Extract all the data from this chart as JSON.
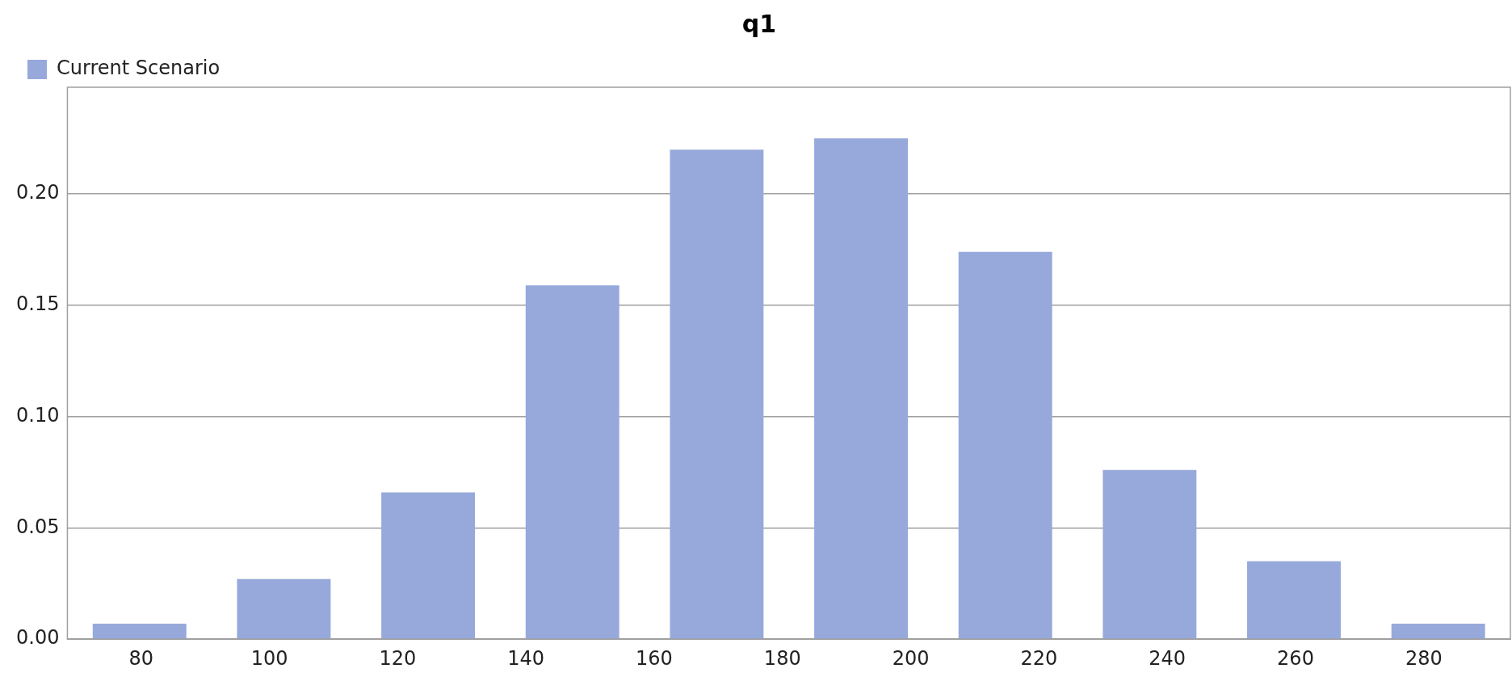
{
  "chart_data": {
    "type": "histogram",
    "title": "q1",
    "bins": [
      68.5,
      91,
      113.5,
      136,
      158.5,
      181,
      203.5,
      226,
      248.5,
      271,
      293.5
    ],
    "series": [
      {
        "name": "Current Scenario",
        "color": "#97a9db",
        "values": [
          0.007,
          0.027,
          0.066,
          0.159,
          0.22,
          0.225,
          0.174,
          0.076,
          0.035,
          0.007
        ]
      }
    ],
    "xlim": [
      68.5,
      293.5
    ],
    "xticks": [
      80,
      100,
      120,
      140,
      160,
      180,
      200,
      220,
      240,
      260,
      280
    ],
    "ylim": [
      0,
      0.248
    ],
    "yticks": [
      {
        "value": 0,
        "label": "0.00"
      },
      {
        "value": 0.05,
        "label": "0.05"
      },
      {
        "value": 0.1,
        "label": "0.10"
      },
      {
        "value": 0.15,
        "label": "0.15"
      },
      {
        "value": 0.2,
        "label": "0.20"
      }
    ],
    "grid": "y",
    "legend": "top left"
  }
}
